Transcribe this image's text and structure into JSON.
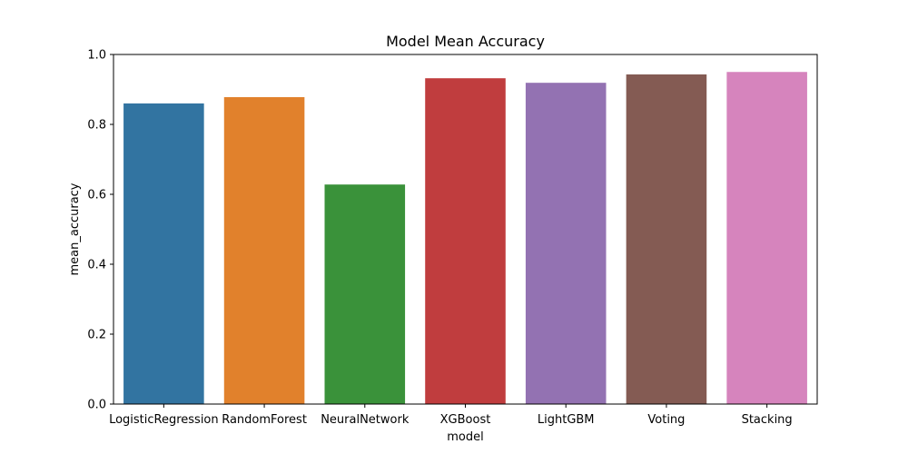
{
  "chart_data": {
    "type": "bar",
    "title": "Model Mean Accuracy",
    "xlabel": "model",
    "ylabel": "mean_accuracy",
    "categories": [
      "LogisticRegression",
      "RandomForest",
      "NeuralNetwork",
      "XGBoost",
      "LightGBM",
      "Voting",
      "Stacking"
    ],
    "values": [
      0.86,
      0.878,
      0.628,
      0.932,
      0.919,
      0.943,
      0.95
    ],
    "colors": [
      "#3274a1",
      "#e1812c",
      "#3a923a",
      "#c03d3e",
      "#9372b2",
      "#845b53",
      "#d684bd"
    ],
    "ylim": [
      0,
      1.0
    ],
    "yticks": [
      "0.0",
      "0.2",
      "0.4",
      "0.6",
      "0.8",
      "1.0"
    ],
    "grid": false,
    "legend": "none"
  }
}
